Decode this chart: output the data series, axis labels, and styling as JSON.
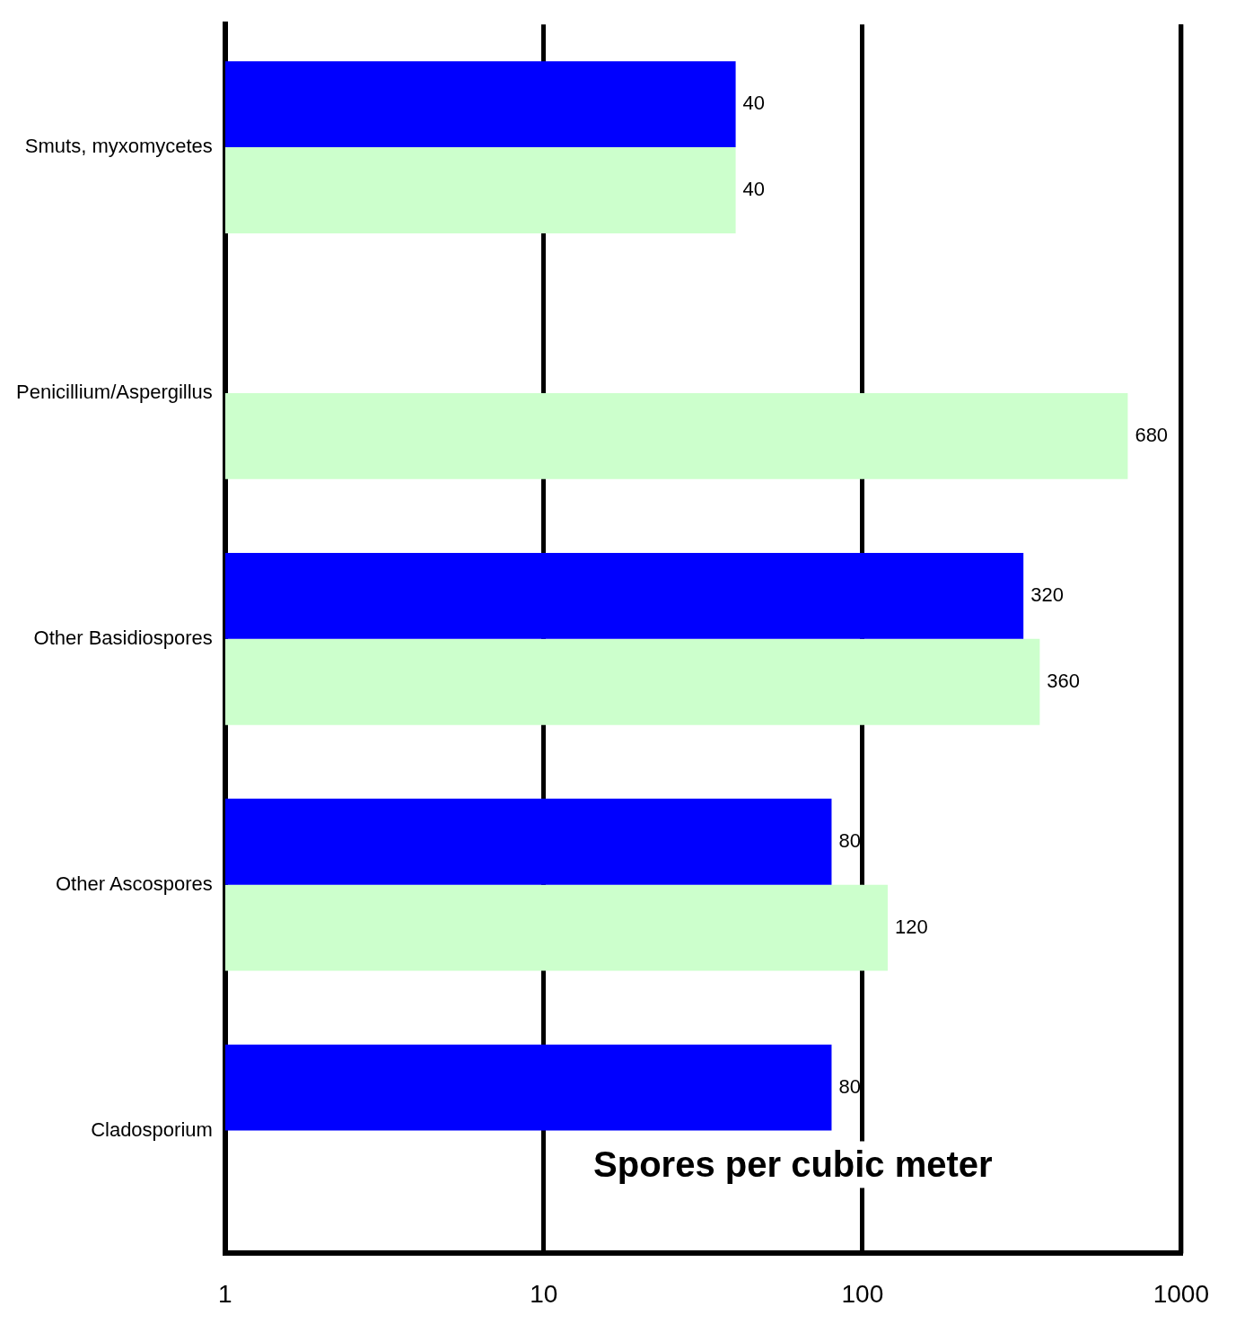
{
  "chart_data": {
    "type": "bar",
    "orientation": "horizontal",
    "xlabel": "Spores per cubic meter",
    "categories": [
      "Smuts, myxomycetes",
      "Penicillium/Aspergillus",
      "Other Basidiospores",
      "Other Ascospores",
      "Cladosporium"
    ],
    "series": [
      {
        "color": "#0000ff",
        "values": [
          40,
          null,
          320,
          80,
          80
        ]
      },
      {
        "color": "#ccffcc",
        "values": [
          40,
          680,
          360,
          120,
          null
        ]
      }
    ],
    "log": "x",
    "xlim": [
      1,
      1000
    ],
    "xticks": [
      1,
      10,
      100,
      1000
    ],
    "grid": "x",
    "data_labels": true,
    "legend": false
  }
}
